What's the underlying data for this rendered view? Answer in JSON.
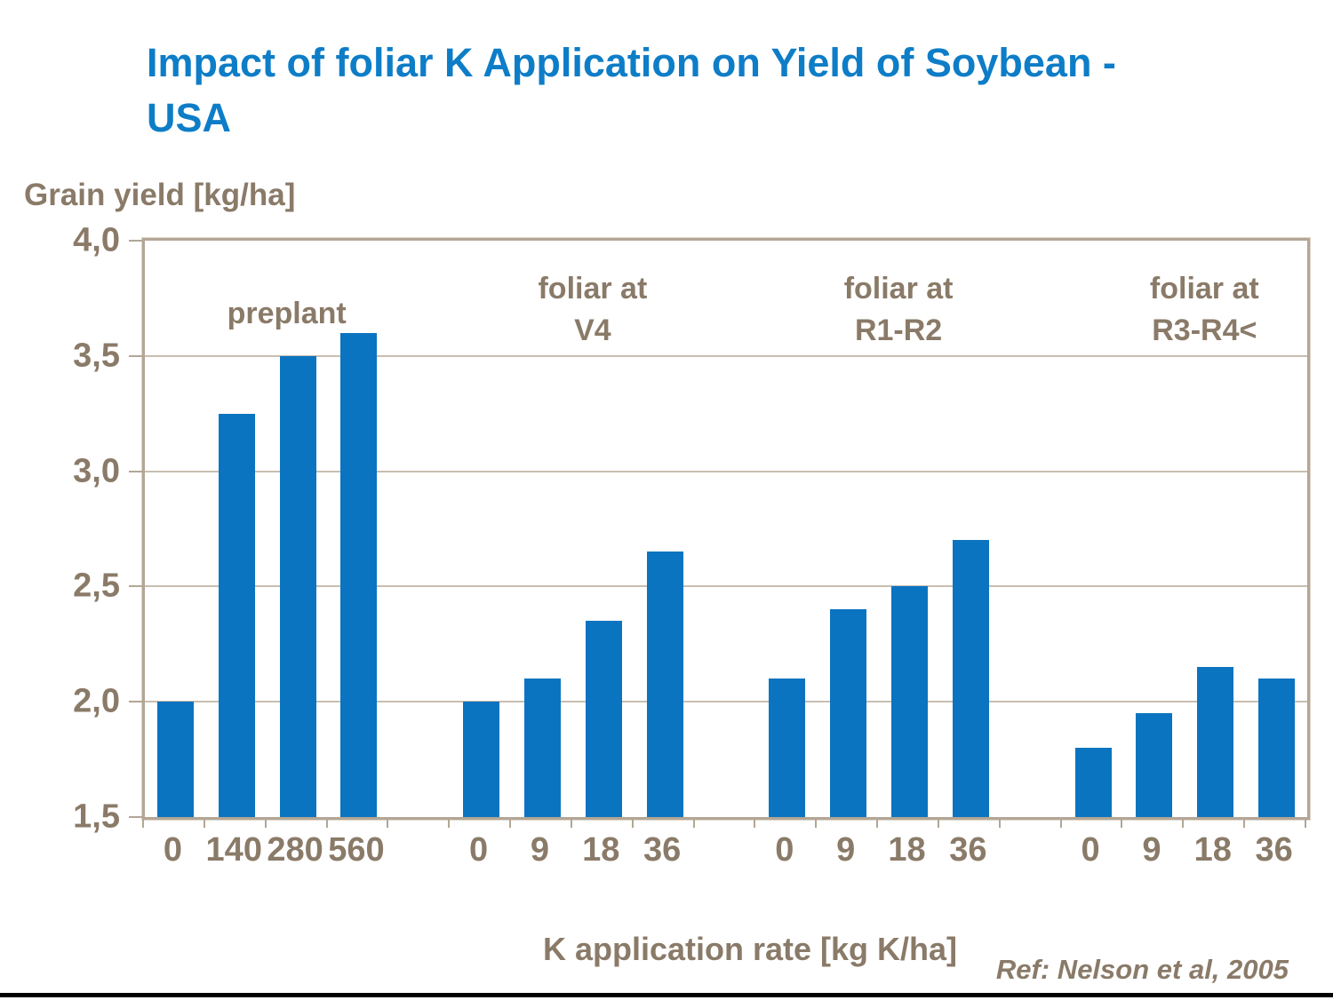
{
  "title": "Impact of foliar K Application on Yield of Soybean -\nUSA",
  "x_axis_title": "K application rate [kg K/ha]",
  "y_axis_title": "Grain yield [kg/ha]",
  "reference": "Ref: Nelson et al, 2005",
  "colors": {
    "bar": "#0b74c0",
    "title": "#0e7dc7",
    "text": "#8a7a68",
    "grid": "#c9beb0",
    "frame": "#b3a696",
    "footer_line": "#000000"
  },
  "chart_data": {
    "type": "bar",
    "title": "Impact of foliar K Application on Yield of Soybean - USA",
    "xlabel": "K application rate [kg K/ha]",
    "ylabel": "Grain yield [kg/ha]",
    "ylim": [
      1.5,
      4.0
    ],
    "grid": true,
    "legend": "none",
    "bar_color": "#0b74c0",
    "yticks": [
      {
        "value": 1.5,
        "label": "1,5"
      },
      {
        "value": 2.0,
        "label": "2,0"
      },
      {
        "value": 2.5,
        "label": "2,5"
      },
      {
        "value": 3.0,
        "label": "3,0"
      },
      {
        "value": 3.5,
        "label": "3,5"
      },
      {
        "value": 4.0,
        "label": "4,0"
      }
    ],
    "groups": [
      {
        "label": "preplant",
        "categories": [
          "0",
          "140",
          "280",
          "560"
        ],
        "values": [
          2.0,
          3.25,
          3.5,
          3.6
        ]
      },
      {
        "label": "foliar at\nV4",
        "categories": [
          "0",
          "9",
          "18",
          "36"
        ],
        "values": [
          2.0,
          2.1,
          2.35,
          2.65
        ]
      },
      {
        "label": "foliar at\nR1-R2",
        "categories": [
          "0",
          "9",
          "18",
          "36"
        ],
        "values": [
          2.1,
          2.4,
          2.5,
          2.7
        ]
      },
      {
        "label": "foliar at\nR3-R4<",
        "categories": [
          "0",
          "9",
          "18",
          "36"
        ],
        "values": [
          1.8,
          1.95,
          2.15,
          2.1
        ]
      }
    ]
  }
}
